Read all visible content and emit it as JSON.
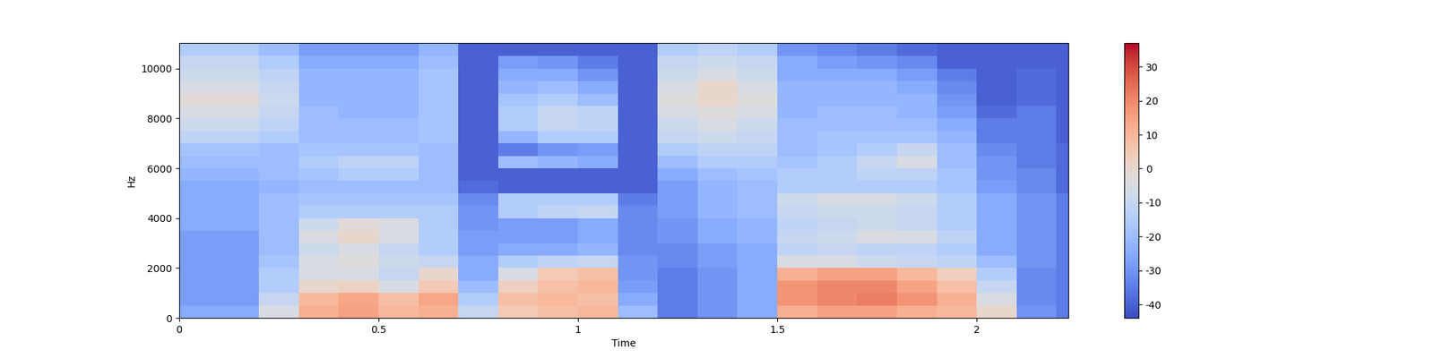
{
  "chart_data": {
    "type": "heatmap",
    "x_label": "Time",
    "y_label": "Hz",
    "color": "coolwarm",
    "x_edges": [
      0,
      0.1,
      0.2,
      0.3,
      0.4,
      0.5,
      0.6,
      0.7,
      0.8,
      0.9,
      1.0,
      1.1,
      1.2,
      1.3,
      1.4,
      1.5,
      1.6,
      1.7,
      1.8,
      1.9,
      2.0,
      2.1,
      2.2,
      2.23
    ],
    "y_edges": [
      0,
      500,
      1000,
      1500,
      2000,
      2500,
      3000,
      3500,
      4000,
      4500,
      5000,
      5500,
      6000,
      6500,
      7000,
      7500,
      8000,
      8500,
      9000,
      9500,
      10000,
      10500,
      11025
    ],
    "xlim": [
      0,
      2.23
    ],
    "xticks": [
      0,
      0.5,
      1,
      1.5,
      2
    ],
    "ylim": [
      0,
      11025
    ],
    "yticks": [
      0,
      2000,
      4000,
      6000,
      8000,
      10000
    ],
    "cells": [
      [
        -25,
        -25,
        -5,
        12,
        15,
        10,
        12,
        -10,
        5,
        8,
        10,
        -20,
        -35,
        -30,
        -25,
        12,
        15,
        15,
        12,
        10,
        0,
        -30,
        -35
      ],
      [
        -28,
        -28,
        -10,
        10,
        14,
        8,
        14,
        -15,
        8,
        10,
        8,
        -25,
        -35,
        -30,
        -25,
        18,
        20,
        22,
        18,
        12,
        -5,
        -32,
        -35
      ],
      [
        -28,
        -28,
        -15,
        0,
        2,
        -5,
        5,
        -20,
        3,
        8,
        10,
        -28,
        -35,
        -30,
        -25,
        18,
        20,
        20,
        15,
        8,
        -10,
        -32,
        -35
      ],
      [
        -28,
        -28,
        -15,
        -5,
        -5,
        -10,
        0,
        -25,
        -5,
        5,
        8,
        -30,
        -35,
        -30,
        -25,
        12,
        15,
        15,
        10,
        3,
        -15,
        -32,
        -35
      ],
      [
        -28,
        -28,
        -18,
        -5,
        -3,
        -8,
        -10,
        -25,
        -15,
        -12,
        -10,
        -30,
        -32,
        -28,
        -25,
        -5,
        -5,
        -8,
        -10,
        -12,
        -20,
        -30,
        -35
      ],
      [
        -28,
        -28,
        -20,
        -8,
        -5,
        -10,
        -15,
        -28,
        -25,
        -25,
        -22,
        -32,
        -32,
        -28,
        -25,
        -12,
        -10,
        -12,
        -12,
        -15,
        -25,
        -30,
        -35
      ],
      [
        -28,
        -28,
        -20,
        -5,
        0,
        -5,
        -15,
        -28,
        -28,
        -28,
        -25,
        -32,
        -30,
        -25,
        -22,
        -10,
        -8,
        -5,
        -5,
        -12,
        -25,
        -30,
        -35
      ],
      [
        -25,
        -25,
        -20,
        -8,
        -2,
        -5,
        -15,
        -30,
        -28,
        -28,
        -25,
        -32,
        -30,
        -25,
        -22,
        -12,
        -10,
        -8,
        -10,
        -15,
        -25,
        -30,
        -35
      ],
      [
        -25,
        -25,
        -20,
        -15,
        -15,
        -15,
        -15,
        -30,
        -15,
        -12,
        -10,
        -32,
        -28,
        -22,
        -20,
        -10,
        -8,
        -8,
        -10,
        -15,
        -25,
        -30,
        -35
      ],
      [
        -25,
        -25,
        -20,
        -18,
        -18,
        -18,
        -18,
        -32,
        -15,
        -15,
        -15,
        -35,
        -28,
        -22,
        -20,
        -8,
        -5,
        -5,
        -8,
        -15,
        -25,
        -30,
        -35
      ],
      [
        -25,
        -25,
        -22,
        -20,
        -20,
        -20,
        -20,
        -38,
        -40,
        -40,
        -40,
        -40,
        -28,
        -22,
        -20,
        -15,
        -15,
        -15,
        -15,
        -18,
        -28,
        -32,
        -38
      ],
      [
        -22,
        -22,
        -20,
        -18,
        -15,
        -15,
        -20,
        -40,
        -40,
        -40,
        -40,
        -40,
        -25,
        -20,
        -18,
        -15,
        -15,
        -12,
        -12,
        -18,
        -30,
        -32,
        -38
      ],
      [
        -20,
        -20,
        -20,
        -15,
        -12,
        -12,
        -20,
        -40,
        -20,
        -22,
        -25,
        -40,
        -20,
        -15,
        -15,
        -18,
        -15,
        -10,
        -5,
        -20,
        -30,
        -35,
        -38
      ],
      [
        -18,
        -18,
        -20,
        -18,
        -18,
        -18,
        -20,
        -40,
        -35,
        -30,
        -28,
        -40,
        -15,
        -12,
        -12,
        -20,
        -18,
        -15,
        -10,
        -20,
        -32,
        -35,
        -38
      ],
      [
        -12,
        -12,
        -15,
        -20,
        -20,
        -20,
        -18,
        -40,
        -22,
        -15,
        -15,
        -40,
        -10,
        -8,
        -10,
        -20,
        -18,
        -18,
        -18,
        -22,
        -35,
        -35,
        -40
      ],
      [
        -8,
        -8,
        -12,
        -20,
        -20,
        -20,
        -18,
        -40,
        -15,
        -10,
        -12,
        -40,
        -8,
        -5,
        -8,
        -20,
        -20,
        -20,
        -20,
        -25,
        -35,
        -35,
        -40
      ],
      [
        -5,
        -5,
        -10,
        -20,
        -22,
        -22,
        -18,
        -40,
        -15,
        -10,
        -12,
        -40,
        -5,
        -3,
        -5,
        -22,
        -20,
        -20,
        -22,
        -28,
        -38,
        -35,
        -40
      ],
      [
        -2,
        -2,
        -8,
        -22,
        -22,
        -22,
        -18,
        -40,
        -18,
        -15,
        -20,
        -40,
        -3,
        0,
        -3,
        -22,
        -22,
        -22,
        -22,
        -30,
        -40,
        -38,
        -40
      ],
      [
        -5,
        -5,
        -10,
        -22,
        -22,
        -22,
        -18,
        -40,
        -22,
        -20,
        -25,
        -40,
        -5,
        0,
        -5,
        -22,
        -22,
        -22,
        -25,
        -32,
        -40,
        -38,
        -40
      ],
      [
        -8,
        -8,
        -12,
        -22,
        -22,
        -22,
        -18,
        -40,
        -25,
        -25,
        -30,
        -40,
        -8,
        -5,
        -8,
        -25,
        -25,
        -25,
        -28,
        -35,
        -40,
        -38,
        -40
      ],
      [
        -10,
        -10,
        -15,
        -25,
        -25,
        -25,
        -20,
        -40,
        -28,
        -30,
        -35,
        -40,
        -10,
        -8,
        -10,
        -25,
        -28,
        -30,
        -32,
        -40,
        -40,
        -40,
        -40
      ],
      [
        -15,
        -15,
        -20,
        -28,
        -28,
        -28,
        -22,
        -40,
        -40,
        -40,
        -40,
        -40,
        -15,
        -12,
        -15,
        -30,
        -32,
        -35,
        -38,
        -40,
        -40,
        -40,
        -40
      ]
    ],
    "colorbar_range": [
      -44,
      37
    ],
    "colorbar_ticks": [
      -40,
      -30,
      -20,
      -10,
      0,
      10,
      20,
      30
    ]
  }
}
